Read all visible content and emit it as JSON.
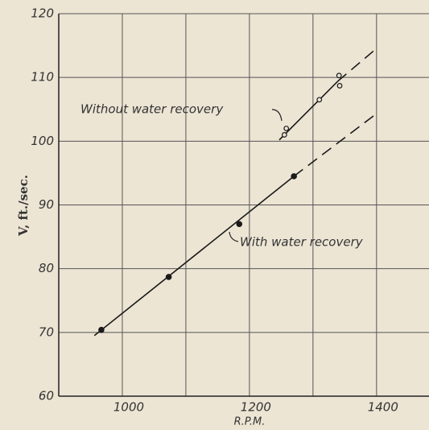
{
  "chart_data": {
    "type": "scatter",
    "xlabel": "R.P.M.",
    "ylabel": "V, ft./sec.",
    "xlim": [
      900,
      1480
    ],
    "ylim": [
      60,
      120
    ],
    "xticks": [
      1000,
      1200,
      1400
    ],
    "xminor_ticks": [
      900,
      1100,
      1300
    ],
    "yticks": [
      60,
      70,
      80,
      90,
      100,
      110,
      120
    ],
    "grid": true,
    "color": "#1a1a1a",
    "series": [
      {
        "name": "With water recovery",
        "marker": "filled",
        "x": [
          967,
          1073,
          1184,
          1270
        ],
        "values": [
          70.4,
          78.7,
          87.0,
          94.5
        ],
        "fit_x": [
          956,
          1270,
          1397
        ],
        "fit_y": [
          69.5,
          94.5,
          104.1
        ]
      },
      {
        "name": "Without water recovery",
        "marker": "hollow",
        "x": [
          1255,
          1258,
          1310,
          1342,
          1341
        ],
        "values": [
          101.0,
          102.0,
          106.5,
          108.7,
          110.3
        ],
        "fit_x": [
          1247,
          1339,
          1397
        ],
        "fit_y": [
          100.2,
          109.4,
          114.3
        ]
      }
    ]
  }
}
